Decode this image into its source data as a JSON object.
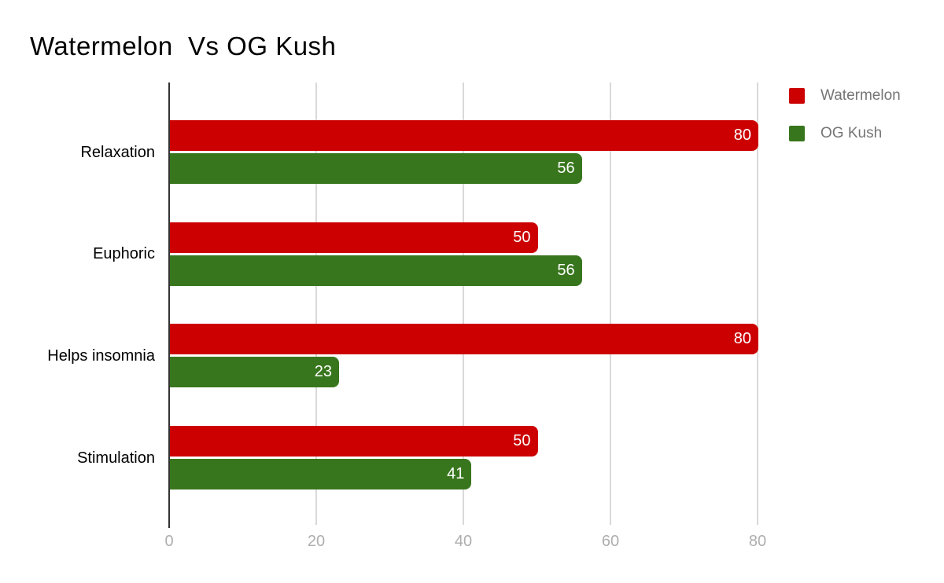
{
  "chart_data": {
    "type": "bar",
    "orientation": "horizontal",
    "title": "Watermelon  Vs OG Kush",
    "categories": [
      "Relaxation",
      "Euphoric",
      "Helps insomnia",
      "Stimulation"
    ],
    "series": [
      {
        "name": "Watermelon",
        "color": "#cc0000",
        "values": [
          80,
          50,
          80,
          50
        ]
      },
      {
        "name": "OG Kush",
        "color": "#38761d",
        "values": [
          56,
          56,
          23,
          41
        ]
      }
    ],
    "x_ticks": [
      0,
      20,
      40,
      60,
      80
    ],
    "xlim": [
      0,
      80
    ],
    "grid": true,
    "legend_position": "right",
    "value_labels": "inside-end",
    "colors": {
      "title": "#000000",
      "axis_line": "#333333",
      "gridline": "#d9d9d9",
      "tick_label": "#aeaeae",
      "category_label": "#000000",
      "value_label": "#ffffff",
      "legend_text": "#757575",
      "background": "#ffffff"
    }
  }
}
